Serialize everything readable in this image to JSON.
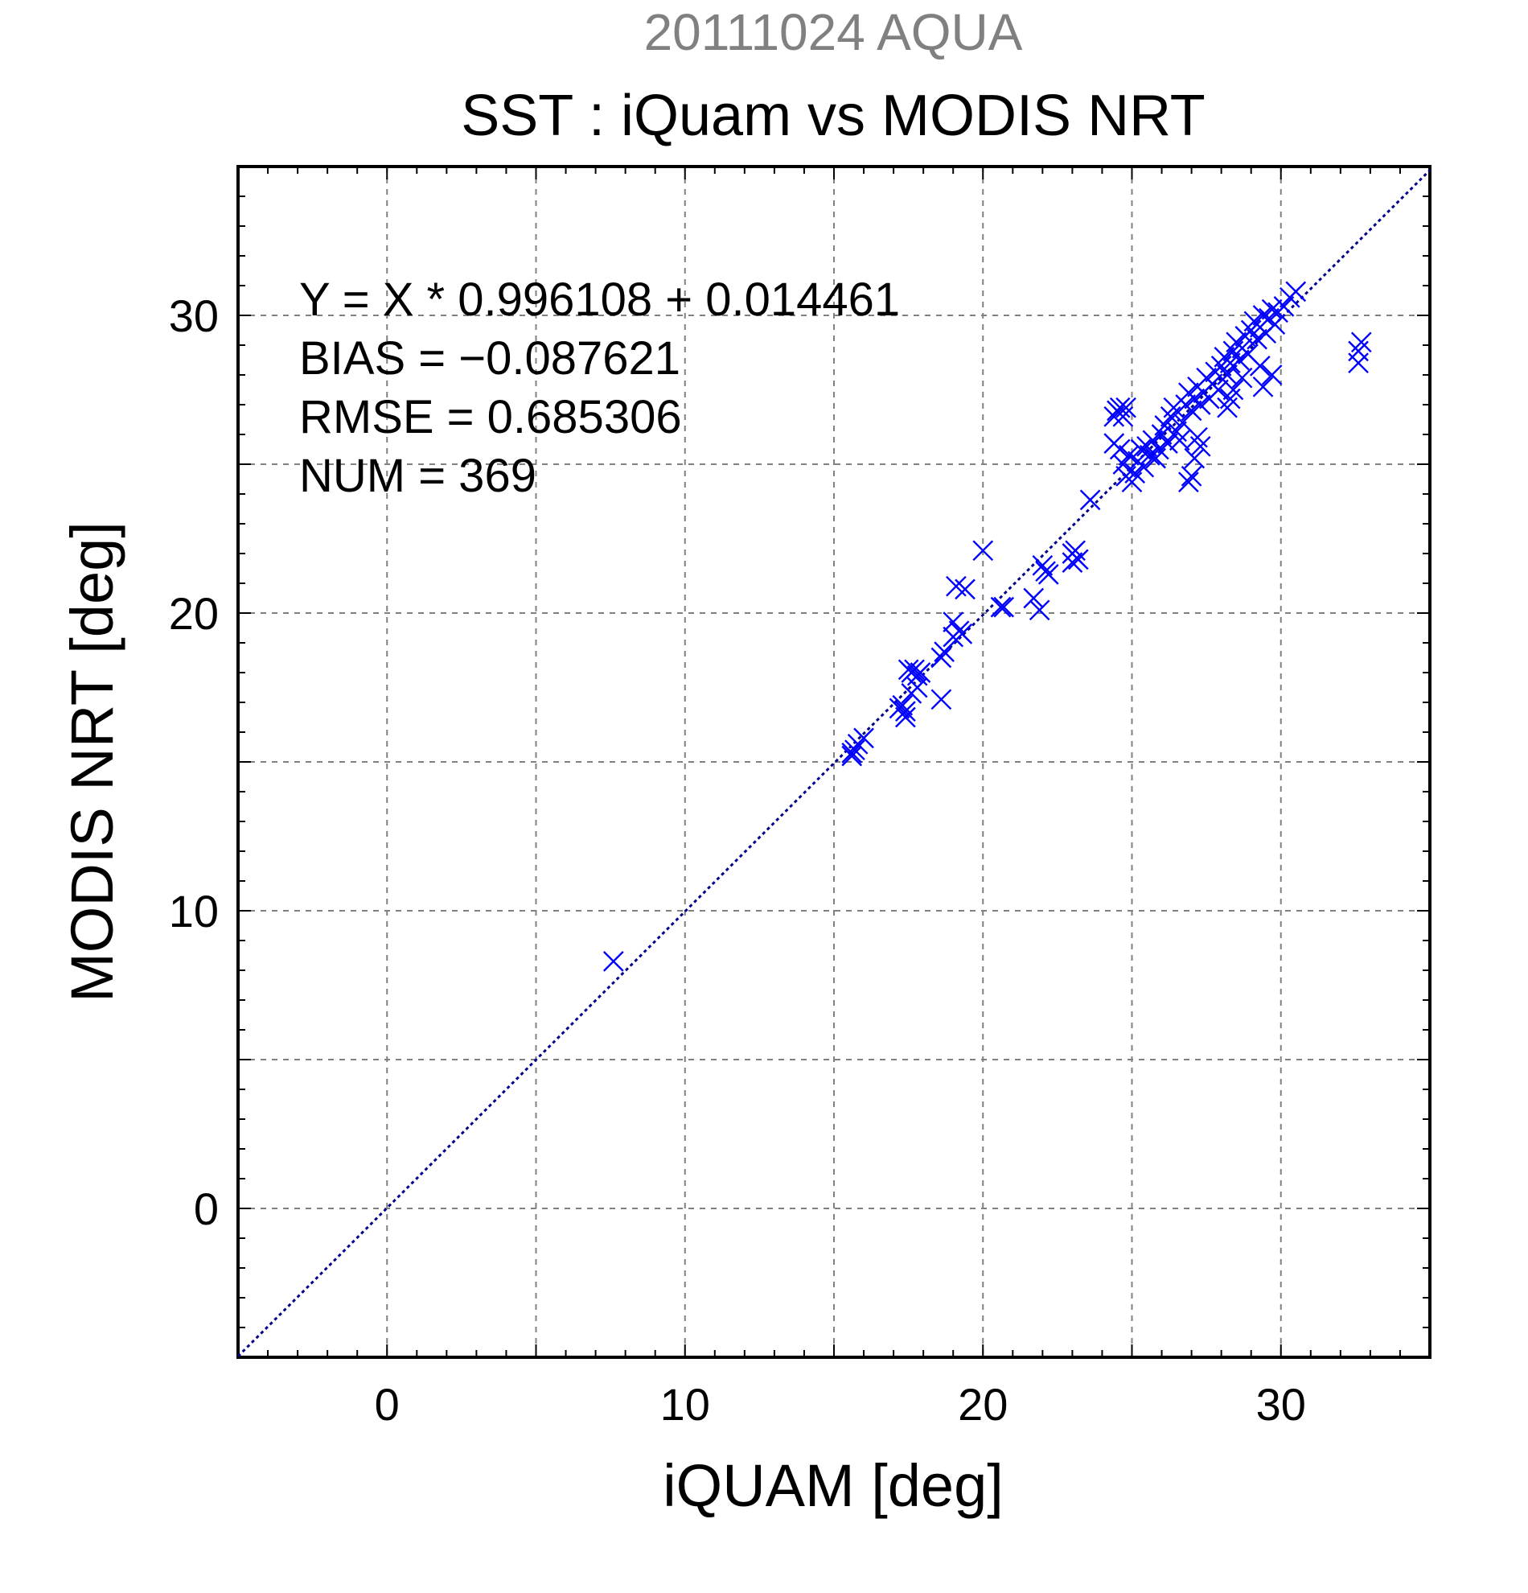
{
  "chart_data": {
    "type": "scatter",
    "supertitle": "20111024 AQUA",
    "title": "SST : iQuam vs MODIS NRT",
    "xlabel": "iQUAM [deg]",
    "ylabel": "MODIS NRT [deg]",
    "xlim": [
      -5,
      35
    ],
    "ylim": [
      -5,
      35
    ],
    "xticks": [
      0,
      10,
      20,
      30
    ],
    "yticks": [
      0,
      10,
      20,
      30
    ],
    "grid": true,
    "marker": "x",
    "colors": {
      "points": "#0000ff",
      "fit_line": "#00008b",
      "supertitle": "#808080"
    },
    "annotations": [
      "Y = X * 0.996108 + 0.014461",
      "BIAS = −0.087621",
      "RMSE = 0.685306",
      "NUM = 369"
    ],
    "fit": {
      "slope": 0.996108,
      "intercept": 0.014461
    },
    "points": [
      [
        7.6,
        8.3
      ],
      [
        15.6,
        15.3
      ],
      [
        15.7,
        15.4
      ],
      [
        15.8,
        15.6
      ],
      [
        16.0,
        15.8
      ],
      [
        15.6,
        15.2
      ],
      [
        17.2,
        16.8
      ],
      [
        17.3,
        16.9
      ],
      [
        17.4,
        16.5
      ],
      [
        17.6,
        17.3
      ],
      [
        17.8,
        17.5
      ],
      [
        17.4,
        16.7
      ],
      [
        17.6,
        18.0
      ],
      [
        17.7,
        18.1
      ],
      [
        17.8,
        17.9
      ],
      [
        17.9,
        18.0
      ],
      [
        17.5,
        18.1
      ],
      [
        18.6,
        18.5
      ],
      [
        18.7,
        18.7
      ],
      [
        18.6,
        17.1
      ],
      [
        19.0,
        19.2
      ],
      [
        19.2,
        19.4
      ],
      [
        19.0,
        19.7
      ],
      [
        19.1,
        20.9
      ],
      [
        19.4,
        20.8
      ],
      [
        19.3,
        19.3
      ],
      [
        20.0,
        22.1
      ],
      [
        20.6,
        20.2
      ],
      [
        20.7,
        20.2
      ],
      [
        21.7,
        20.5
      ],
      [
        21.9,
        20.1
      ],
      [
        22.0,
        21.6
      ],
      [
        22.1,
        21.4
      ],
      [
        22.2,
        21.3
      ],
      [
        23.0,
        22.0
      ],
      [
        23.0,
        21.7
      ],
      [
        23.1,
        22.1
      ],
      [
        23.2,
        21.8
      ],
      [
        23.6,
        23.8
      ],
      [
        24.4,
        26.6
      ],
      [
        24.5,
        26.8
      ],
      [
        24.6,
        26.9
      ],
      [
        24.7,
        26.6
      ],
      [
        24.8,
        26.9
      ],
      [
        24.4,
        25.7
      ],
      [
        24.6,
        25.5
      ],
      [
        24.7,
        25.0
      ],
      [
        24.8,
        24.6
      ],
      [
        24.9,
        25.3
      ],
      [
        25.0,
        24.4
      ],
      [
        25.1,
        24.7
      ],
      [
        25.2,
        25.1
      ],
      [
        25.3,
        25.5
      ],
      [
        25.4,
        24.9
      ],
      [
        25.5,
        25.6
      ],
      [
        25.6,
        25.3
      ],
      [
        25.7,
        25.8
      ],
      [
        25.8,
        25.2
      ],
      [
        25.9,
        25.5
      ],
      [
        26.0,
        26.0
      ],
      [
        26.1,
        26.3
      ],
      [
        26.2,
        25.7
      ],
      [
        26.3,
        26.6
      ],
      [
        26.4,
        26.9
      ],
      [
        26.5,
        26.1
      ],
      [
        26.6,
        25.8
      ],
      [
        26.7,
        26.4
      ],
      [
        26.8,
        27.0
      ],
      [
        26.9,
        27.4
      ],
      [
        26.9,
        24.4
      ],
      [
        27.0,
        24.6
      ],
      [
        27.1,
        25.2
      ],
      [
        27.2,
        25.9
      ],
      [
        27.3,
        25.6
      ],
      [
        27.0,
        26.8
      ],
      [
        27.1,
        27.2
      ],
      [
        27.2,
        27.6
      ],
      [
        27.3,
        27.0
      ],
      [
        27.4,
        27.4
      ],
      [
        27.5,
        27.9
      ],
      [
        27.6,
        27.2
      ],
      [
        27.7,
        27.7
      ],
      [
        27.8,
        28.1
      ],
      [
        27.9,
        27.5
      ],
      [
        28.0,
        28.3
      ],
      [
        28.1,
        28.6
      ],
      [
        28.2,
        28.0
      ],
      [
        28.3,
        28.4
      ],
      [
        28.4,
        28.8
      ],
      [
        28.5,
        29.1
      ],
      [
        28.6,
        28.5
      ],
      [
        28.7,
        28.9
      ],
      [
        28.8,
        29.3
      ],
      [
        28.9,
        28.7
      ],
      [
        28.3,
        27.2
      ],
      [
        28.4,
        27.5
      ],
      [
        28.7,
        27.9
      ],
      [
        28.2,
        26.9
      ],
      [
        29.0,
        29.5
      ],
      [
        29.1,
        29.8
      ],
      [
        29.2,
        29.2
      ],
      [
        29.3,
        29.6
      ],
      [
        29.4,
        30.0
      ],
      [
        29.5,
        29.4
      ],
      [
        29.6,
        29.9
      ],
      [
        29.7,
        30.2
      ],
      [
        29.8,
        29.7
      ],
      [
        29.9,
        30.1
      ],
      [
        29.4,
        27.6
      ],
      [
        29.7,
        28.0
      ],
      [
        29.3,
        28.3
      ],
      [
        30.1,
        30.3
      ],
      [
        30.3,
        30.6
      ],
      [
        30.5,
        30.8
      ],
      [
        32.6,
        28.8
      ],
      [
        32.7,
        29.1
      ],
      [
        32.6,
        28.4
      ]
    ]
  }
}
